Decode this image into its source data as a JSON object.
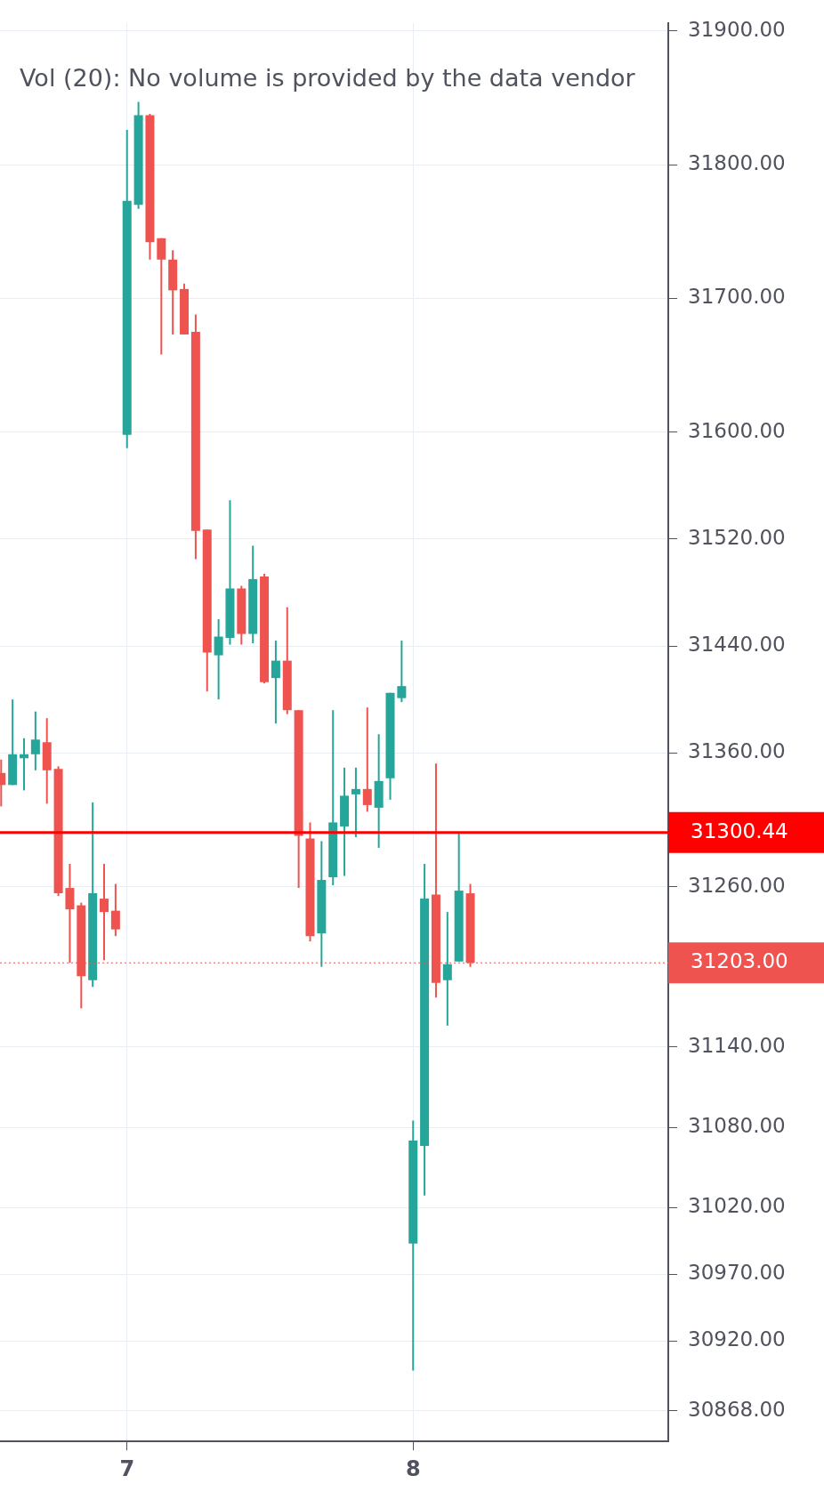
{
  "chart_data": {
    "type": "candlestick",
    "annotations": [
      "Vol (20): No volume is provided by the data vendor"
    ],
    "x": [
      6.56,
      6.6,
      6.64,
      6.68,
      6.72,
      6.76,
      6.8,
      6.84,
      6.88,
      6.92,
      6.96,
      7,
      7.04,
      7.08,
      7.12,
      7.16,
      7.2,
      7.24,
      7.28,
      7.32,
      7.36,
      7.4,
      7.44,
      7.48,
      7.52,
      7.56,
      7.6,
      7.64,
      7.68,
      7.72,
      7.76,
      7.8,
      7.84,
      7.88,
      7.92,
      7.96,
      8,
      8.04,
      8.08,
      8.12,
      8.16,
      8.2
    ],
    "ohlc": [
      [
        31345,
        31355,
        31320,
        31336
      ],
      [
        31336,
        31400,
        31336,
        31359
      ],
      [
        31356,
        31371,
        31332,
        31359
      ],
      [
        31359,
        31391,
        31347,
        31370
      ],
      [
        31368,
        31386,
        31322,
        31347
      ],
      [
        31348,
        31350,
        31253,
        31255
      ],
      [
        31259,
        31277,
        31203,
        31243
      ],
      [
        31246,
        31248,
        31169,
        31193
      ],
      [
        31190,
        31323,
        31185,
        31255
      ],
      [
        31251,
        31277,
        31205,
        31241
      ],
      [
        31242,
        31262,
        31223,
        31228
      ],
      [
        31598,
        31826,
        31588,
        31773
      ],
      [
        31770,
        31847,
        31767,
        31837
      ],
      [
        31837,
        31838,
        31729,
        31742
      ],
      [
        31745,
        31745,
        31658,
        31729
      ],
      [
        31729,
        31736,
        31673,
        31706
      ],
      [
        31707,
        31711,
        31673,
        31673
      ],
      [
        31675,
        31688,
        31505,
        31526
      ],
      [
        31527,
        31527,
        31406,
        31435
      ],
      [
        31433,
        31460,
        31400,
        31447
      ],
      [
        31446,
        31549,
        31441,
        31483
      ],
      [
        31483,
        31485,
        31441,
        31449
      ],
      [
        31449,
        31515,
        31442,
        31490
      ],
      [
        31492,
        31494,
        31412,
        31413
      ],
      [
        31416,
        31444,
        31382,
        31429
      ],
      [
        31429,
        31469,
        31389,
        31392
      ],
      [
        31392,
        31392,
        31259,
        31298
      ],
      [
        31296,
        31308,
        31219,
        31223
      ],
      [
        31225,
        31294,
        31200,
        31265
      ],
      [
        31267,
        31392,
        31261,
        31308
      ],
      [
        31305,
        31349,
        31268,
        31328
      ],
      [
        31329,
        31349,
        31297,
        31333
      ],
      [
        31333,
        31394,
        31316,
        31321
      ],
      [
        31319,
        31374,
        31289,
        31339
      ],
      [
        31341,
        31405,
        31325,
        31405
      ],
      [
        31401,
        31444,
        31398,
        31410
      ],
      [
        30993,
        31085,
        30898,
        31070
      ],
      [
        31066,
        31277,
        31029,
        31251
      ],
      [
        31254,
        31352,
        31177,
        31188
      ],
      [
        31190,
        31241,
        31156,
        31202
      ],
      [
        31204,
        31300,
        31204,
        31257
      ],
      [
        31255,
        31262,
        31200,
        31203
      ]
    ],
    "xlim": [
      6.556,
      8.892
    ],
    "xticks": [
      7,
      8
    ],
    "ylim": [
      30845,
      31906
    ],
    "yticks": [
      {
        "value": 30868,
        "label": "30868.00"
      },
      {
        "value": 30920,
        "label": "30920.00"
      },
      {
        "value": 30970,
        "label": "30970.00"
      },
      {
        "value": 31020,
        "label": "31020.00"
      },
      {
        "value": 31080,
        "label": "31080.00"
      },
      {
        "value": 31140,
        "label": "31140.00"
      },
      {
        "value": 31260,
        "label": "31260.00"
      },
      {
        "value": 31360,
        "label": "31360.00"
      },
      {
        "value": 31440,
        "label": "31440.00"
      },
      {
        "value": 31520,
        "label": "31520.00"
      },
      {
        "value": 31600,
        "label": "31600.00"
      },
      {
        "value": 31700,
        "label": "31700.00"
      },
      {
        "value": 31800,
        "label": "31800.00"
      },
      {
        "value": 31900,
        "label": "31900.00"
      }
    ],
    "ref_lines": [
      {
        "axis": "y",
        "value": 31300.44,
        "label": "31300.44",
        "color": "#ff0000",
        "line_style": "solid"
      },
      {
        "axis": "y",
        "value": 31203,
        "label": "31203.00",
        "color": "#ef5350",
        "line_style": "dotted"
      }
    ],
    "grid": true,
    "legend": false
  }
}
